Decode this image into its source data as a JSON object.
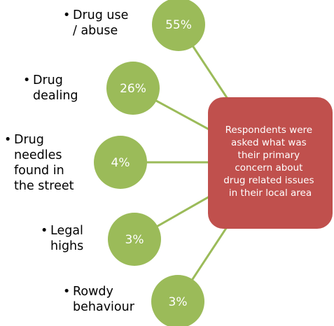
{
  "center": {
    "lines": [
      "Respondents were",
      "asked what was",
      "their primary",
      "concern about",
      "drug related issues",
      "in their local area"
    ]
  },
  "concerns": [
    {
      "percent": "55%",
      "label_lines": [
        "Drug use",
        "/ abuse"
      ]
    },
    {
      "percent": "26%",
      "label_lines": [
        "Drug",
        "dealing"
      ]
    },
    {
      "percent": "4%",
      "label_lines": [
        "Drug",
        "needles",
        "found in",
        "the street"
      ]
    },
    {
      "percent": "3%",
      "label_lines": [
        "Legal",
        "highs"
      ]
    },
    {
      "percent": "3%",
      "label_lines": [
        "Rowdy",
        "behaviour"
      ]
    }
  ],
  "colors": {
    "bubble": "#9bbb59",
    "center": "#c0504d"
  }
}
